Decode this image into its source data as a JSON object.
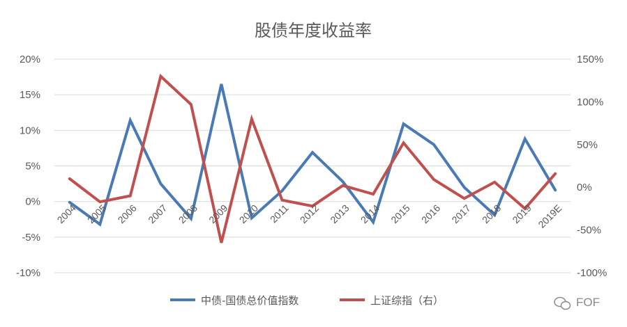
{
  "chart_data": {
    "type": "line",
    "title": "股债年度收益率",
    "categories": [
      "2004",
      "2005",
      "2006",
      "2007",
      "2008",
      "2009",
      "2010",
      "2011",
      "2012",
      "2013",
      "2014",
      "2015",
      "2016",
      "2017",
      "2018",
      "2019",
      "2019E"
    ],
    "left_axis": {
      "ticks": [
        "20%",
        "15%",
        "10%",
        "5%",
        "0%",
        "-5%",
        "-10%"
      ],
      "range": [
        -10,
        20
      ]
    },
    "right_axis": {
      "ticks": [
        "150%",
        "100%",
        "50%",
        "0%",
        "-50%",
        "-100%"
      ],
      "range": [
        -100,
        150
      ]
    },
    "grid": true,
    "legend_position": "bottom",
    "series": [
      {
        "name": "中债-国债总价值指数",
        "axis": "left",
        "color": "#4a7ab5",
        "values": [
          -0.1,
          -3.2,
          11.4,
          2.5,
          -2.4,
          16.5,
          -2.3,
          1.5,
          6.9,
          2.8,
          -2.9,
          10.9,
          8.0,
          2.0,
          -1.9,
          8.8,
          1.6
        ]
      },
      {
        "name": "上证综指（右）",
        "axis": "right",
        "color": "#c0504d",
        "values": [
          10,
          -17,
          -10,
          130,
          97,
          -65,
          80,
          -15,
          -22,
          2,
          -8,
          52,
          9,
          -13,
          6,
          -25,
          16
        ]
      }
    ]
  },
  "watermark": "FOF"
}
